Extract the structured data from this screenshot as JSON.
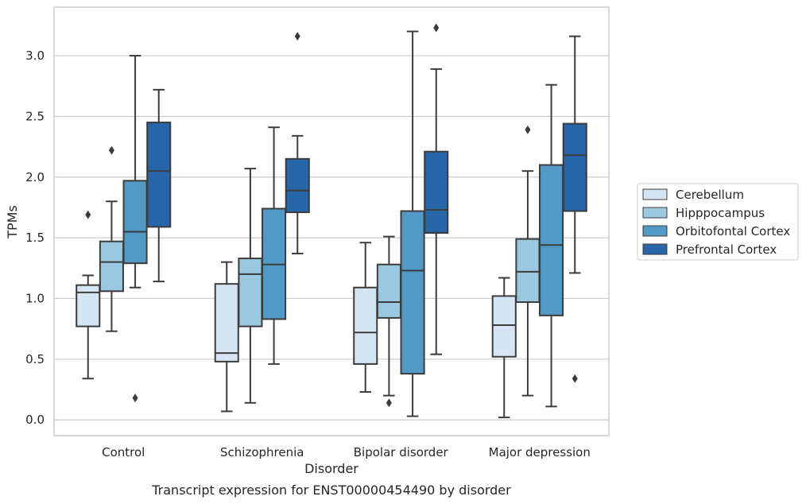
{
  "chart_data": {
    "type": "box",
    "caption": "Transcript expression for ENST00000454490 by disorder",
    "xlabel": "Disorder",
    "ylabel": "TPMs",
    "ylim": [
      -0.13,
      3.4
    ],
    "yticks": [
      "0.0",
      "0.5",
      "1.0",
      "1.5",
      "2.0",
      "2.5",
      "3.0"
    ],
    "grid": "horizontal",
    "legend_position": "right",
    "categories": [
      "Control",
      "Schizophrenia",
      "Bipolar disorder",
      "Major depression"
    ],
    "series": [
      {
        "name": "Cerebellum",
        "color": "#d6e5f4",
        "boxes": [
          {
            "whisker_low": 0.34,
            "q1": 0.77,
            "median": 1.05,
            "q3": 1.11,
            "whisker_high": 1.19,
            "outliers": [
              1.69
            ]
          },
          {
            "whisker_low": 0.07,
            "q1": 0.48,
            "median": 0.55,
            "q3": 1.12,
            "whisker_high": 1.3,
            "outliers": []
          },
          {
            "whisker_low": 0.23,
            "q1": 0.46,
            "median": 0.72,
            "q3": 1.09,
            "whisker_high": 1.46,
            "outliers": []
          },
          {
            "whisker_low": 0.02,
            "q1": 0.52,
            "median": 0.78,
            "q3": 1.02,
            "whisker_high": 1.17,
            "outliers": []
          }
        ]
      },
      {
        "name": "Hipppocampus",
        "color": "#9ac8e0",
        "boxes": [
          {
            "whisker_low": 0.73,
            "q1": 1.06,
            "median": 1.3,
            "q3": 1.47,
            "whisker_high": 1.8,
            "outliers": [
              2.22
            ]
          },
          {
            "whisker_low": 0.14,
            "q1": 0.77,
            "median": 1.2,
            "q3": 1.33,
            "whisker_high": 2.07,
            "outliers": []
          },
          {
            "whisker_low": 0.2,
            "q1": 0.84,
            "median": 0.97,
            "q3": 1.28,
            "whisker_high": 1.51,
            "outliers": [
              0.14
            ]
          },
          {
            "whisker_low": 0.2,
            "q1": 0.97,
            "median": 1.22,
            "q3": 1.49,
            "whisker_high": 2.05,
            "outliers": [
              2.39
            ]
          }
        ]
      },
      {
        "name": "Orbitofontal Cortex",
        "color": "#5399c6",
        "boxes": [
          {
            "whisker_low": 1.09,
            "q1": 1.29,
            "median": 1.55,
            "q3": 1.97,
            "whisker_high": 3.0,
            "outliers": [
              0.18
            ]
          },
          {
            "whisker_low": 0.46,
            "q1": 0.83,
            "median": 1.28,
            "q3": 1.74,
            "whisker_high": 2.41,
            "outliers": []
          },
          {
            "whisker_low": 0.03,
            "q1": 0.38,
            "median": 1.23,
            "q3": 1.72,
            "whisker_high": 3.2,
            "outliers": []
          },
          {
            "whisker_low": 0.11,
            "q1": 0.86,
            "median": 1.44,
            "q3": 2.1,
            "whisker_high": 2.76,
            "outliers": []
          }
        ]
      },
      {
        "name": "Prefrontal Cortex",
        "color": "#2565a8",
        "boxes": [
          {
            "whisker_low": 1.14,
            "q1": 1.59,
            "median": 2.05,
            "q3": 2.45,
            "whisker_high": 2.72,
            "outliers": []
          },
          {
            "whisker_low": 1.37,
            "q1": 1.71,
            "median": 1.89,
            "q3": 2.15,
            "whisker_high": 2.34,
            "outliers": [
              3.16
            ]
          },
          {
            "whisker_low": 0.54,
            "q1": 1.54,
            "median": 1.73,
            "q3": 2.21,
            "whisker_high": 2.89,
            "outliers": [
              3.23
            ]
          },
          {
            "whisker_low": 1.21,
            "q1": 1.72,
            "median": 2.18,
            "q3": 2.44,
            "whisker_high": 3.16,
            "outliers": [
              0.34
            ]
          }
        ]
      }
    ]
  }
}
